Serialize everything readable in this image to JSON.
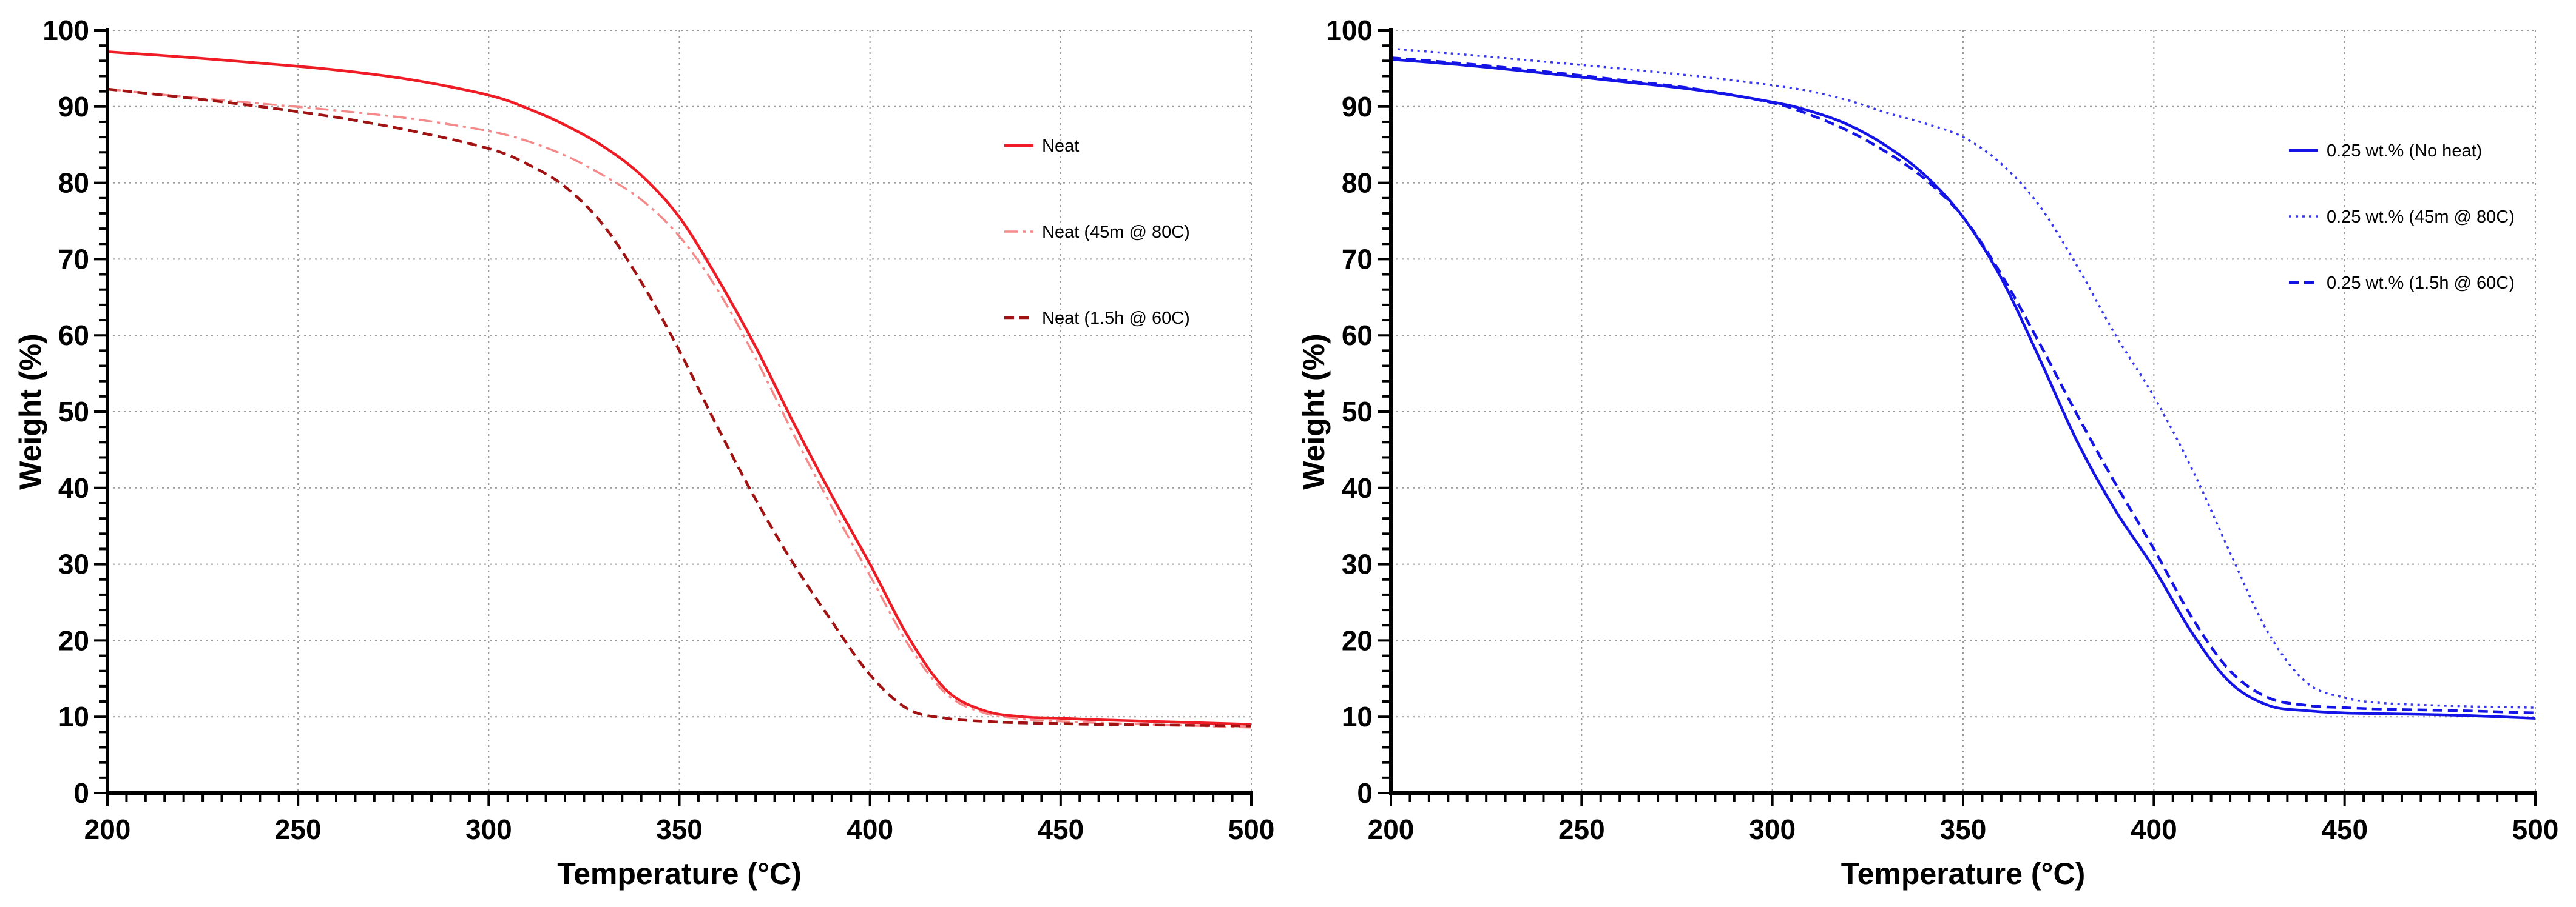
{
  "chart_data": [
    {
      "type": "line",
      "xlabel": "Temperature (°C)",
      "ylabel": "Weight  (%)",
      "xlim": [
        200,
        500
      ],
      "ylim": [
        0,
        100
      ],
      "xticks": [
        "200",
        "250",
        "300",
        "350",
        "400",
        "450",
        "500"
      ],
      "yticks": [
        "0",
        "10",
        "20",
        "30",
        "40",
        "50",
        "60",
        "70",
        "80",
        "90",
        "100"
      ],
      "grid": true,
      "legend_position": "top-right",
      "series": [
        {
          "name": "Neat",
          "color": "#ee1c25",
          "style": "solid",
          "x": [
            200,
            220,
            240,
            260,
            280,
            300,
            310,
            320,
            330,
            340,
            350,
            360,
            370,
            380,
            390,
            400,
            410,
            420,
            430,
            440,
            450,
            460,
            480,
            500
          ],
          "y": [
            97.2,
            96.5,
            95.7,
            94.8,
            93.5,
            91.5,
            89.8,
            87.6,
            84.8,
            81.0,
            75.5,
            67.5,
            58.5,
            48.5,
            39.0,
            30.0,
            20.5,
            13.5,
            10.8,
            10.0,
            9.8,
            9.6,
            9.3,
            9.0
          ]
        },
        {
          "name": "Neat (45m @ 80C)",
          "color": "#f58a8a",
          "style": "dashdot",
          "x": [
            200,
            220,
            240,
            260,
            280,
            300,
            310,
            320,
            330,
            340,
            350,
            360,
            370,
            380,
            390,
            400,
            410,
            420,
            430,
            440,
            450,
            460,
            480,
            500
          ],
          "y": [
            92.3,
            91.3,
            90.4,
            89.5,
            88.4,
            86.8,
            85.5,
            83.6,
            81.0,
            77.8,
            73.0,
            66.0,
            57.0,
            47.0,
            37.5,
            28.5,
            19.5,
            13.0,
            10.5,
            9.7,
            9.4,
            9.2,
            8.9,
            8.6
          ]
        },
        {
          "name": "Neat (1.5h @ 60C)",
          "color": "#a11212",
          "style": "dashed",
          "x": [
            200,
            220,
            240,
            260,
            280,
            300,
            310,
            320,
            330,
            340,
            350,
            360,
            370,
            380,
            390,
            400,
            410,
            420,
            430,
            440,
            450,
            460,
            480,
            500
          ],
          "y": [
            92.3,
            91.2,
            90.0,
            88.6,
            86.8,
            84.5,
            82.5,
            79.5,
            74.5,
            67.0,
            58.0,
            48.0,
            38.5,
            30.0,
            22.5,
            15.5,
            11.0,
            9.8,
            9.4,
            9.2,
            9.1,
            9.0,
            8.9,
            8.8
          ]
        }
      ]
    },
    {
      "type": "line",
      "xlabel": "Temperature (°C)",
      "ylabel": "Weight  (%)",
      "xlim": [
        200,
        500
      ],
      "ylim": [
        0,
        100
      ],
      "xticks": [
        "200",
        "250",
        "300",
        "350",
        "400",
        "450",
        "500"
      ],
      "yticks": [
        "0",
        "10",
        "20",
        "30",
        "40",
        "50",
        "60",
        "70",
        "80",
        "90",
        "100"
      ],
      "grid": true,
      "legend_position": "top-right",
      "series": [
        {
          "name": "0.25 wt.% (No heat)",
          "color": "#1414e6",
          "style": "solid",
          "x": [
            200,
            220,
            240,
            260,
            280,
            300,
            310,
            320,
            330,
            340,
            350,
            360,
            370,
            380,
            390,
            400,
            410,
            420,
            430,
            440,
            450,
            460,
            480,
            500
          ],
          "y": [
            96.2,
            95.4,
            94.4,
            93.3,
            92.2,
            90.6,
            89.4,
            87.6,
            84.8,
            81.0,
            75.5,
            67.5,
            57.0,
            46.0,
            37.0,
            29.5,
            21.0,
            14.5,
            11.5,
            10.8,
            10.5,
            10.4,
            10.2,
            9.8
          ]
        },
        {
          "name": "0.25 wt.% (45m @ 80C)",
          "color": "#3838f0",
          "style": "dotted",
          "x": [
            200,
            220,
            240,
            260,
            280,
            300,
            310,
            320,
            330,
            340,
            350,
            360,
            370,
            380,
            390,
            400,
            410,
            420,
            430,
            440,
            450,
            460,
            480,
            500
          ],
          "y": [
            97.6,
            96.8,
            95.9,
            95.0,
            94.0,
            92.8,
            92.0,
            90.8,
            89.2,
            87.8,
            86.0,
            82.5,
            77.0,
            69.0,
            60.0,
            52.0,
            42.5,
            31.5,
            21.0,
            14.5,
            12.5,
            11.8,
            11.4,
            11.2
          ]
        },
        {
          "name": "0.25 wt.% (1.5h @ 60C)",
          "color": "#1414e6",
          "style": "dashed",
          "x": [
            200,
            220,
            240,
            260,
            280,
            300,
            310,
            320,
            330,
            340,
            350,
            360,
            370,
            380,
            390,
            400,
            410,
            420,
            430,
            440,
            450,
            460,
            480,
            500
          ],
          "y": [
            96.4,
            95.6,
            94.6,
            93.5,
            92.3,
            90.5,
            88.9,
            86.8,
            84.0,
            80.5,
            75.5,
            68.0,
            59.0,
            49.5,
            40.5,
            32.0,
            23.0,
            16.0,
            12.5,
            11.5,
            11.2,
            11.0,
            10.8,
            10.5
          ]
        }
      ]
    }
  ]
}
